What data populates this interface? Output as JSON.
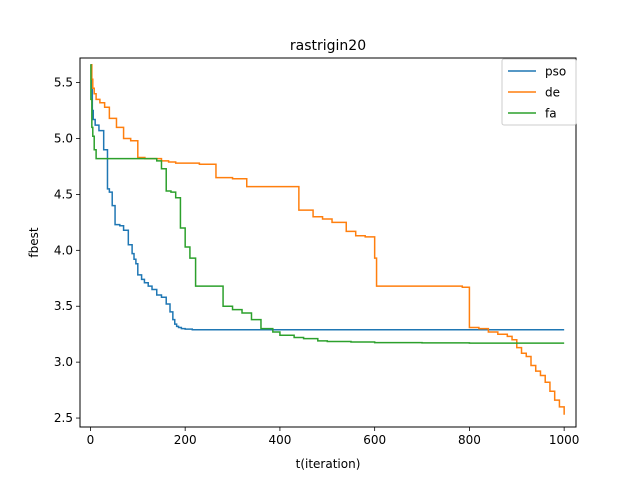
{
  "chart_data": {
    "type": "line",
    "title": "rastrigin20",
    "xlabel": "t(iteration)",
    "ylabel": "fbest",
    "xlim": [
      -22,
      1025
    ],
    "ylim": [
      2.42,
      5.72
    ],
    "xticks": [
      0,
      200,
      400,
      600,
      800,
      1000
    ],
    "xtick_labels": [
      "0",
      "200",
      "400",
      "600",
      "800",
      "1000"
    ],
    "yticks": [
      2.5,
      3.0,
      3.5,
      4.0,
      4.5,
      5.0,
      5.5
    ],
    "ytick_labels": [
      "2.5",
      "3.0",
      "3.5",
      "4.0",
      "4.5",
      "5.0",
      "5.5"
    ],
    "grid": false,
    "legend_position": "top-right",
    "series": [
      {
        "name": "pso",
        "color": "#1f77b4",
        "x": [
          0,
          2,
          4,
          6,
          10,
          18,
          28,
          36,
          40,
          46,
          52,
          62,
          70,
          80,
          88,
          92,
          96,
          100,
          108,
          114,
          122,
          130,
          140,
          150,
          160,
          168,
          174,
          178,
          182,
          186,
          192,
          200,
          215,
          240,
          300,
          400,
          600,
          800,
          1000
        ],
        "y": [
          5.66,
          5.45,
          5.25,
          5.17,
          5.12,
          5.07,
          4.9,
          4.55,
          4.52,
          4.4,
          4.23,
          4.22,
          4.18,
          4.05,
          3.97,
          3.92,
          3.88,
          3.78,
          3.74,
          3.71,
          3.68,
          3.65,
          3.6,
          3.58,
          3.52,
          3.45,
          3.38,
          3.34,
          3.32,
          3.31,
          3.3,
          3.295,
          3.29,
          3.29,
          3.29,
          3.29,
          3.29,
          3.29,
          3.29
        ]
      },
      {
        "name": "de",
        "color": "#ff7f0e",
        "x": [
          0,
          3,
          5,
          8,
          12,
          20,
          30,
          40,
          55,
          70,
          85,
          100,
          115,
          130,
          150,
          165,
          180,
          200,
          230,
          265,
          300,
          330,
          370,
          400,
          435,
          440,
          470,
          490,
          510,
          540,
          560,
          580,
          600,
          604,
          640,
          700,
          760,
          785,
          800,
          820,
          840,
          860,
          880,
          890,
          900,
          910,
          920,
          930,
          940,
          950,
          960,
          970,
          980,
          990,
          1000
        ],
        "y": [
          5.66,
          5.53,
          5.45,
          5.4,
          5.35,
          5.32,
          5.28,
          5.18,
          5.1,
          5.0,
          4.98,
          4.83,
          4.82,
          4.82,
          4.8,
          4.79,
          4.78,
          4.78,
          4.77,
          4.65,
          4.64,
          4.57,
          4.57,
          4.57,
          4.57,
          4.36,
          4.3,
          4.28,
          4.25,
          4.17,
          4.13,
          4.12,
          3.93,
          3.68,
          3.68,
          3.68,
          3.68,
          3.67,
          3.31,
          3.3,
          3.27,
          3.25,
          3.23,
          3.2,
          3.13,
          3.08,
          3.05,
          2.97,
          2.92,
          2.88,
          2.82,
          2.74,
          2.66,
          2.6,
          2.53
        ]
      },
      {
        "name": "fa",
        "color": "#2ca02c",
        "x": [
          0,
          1,
          3,
          5,
          8,
          12,
          30,
          60,
          90,
          120,
          140,
          150,
          160,
          170,
          180,
          190,
          200,
          210,
          222,
          250,
          280,
          300,
          320,
          340,
          360,
          385,
          400,
          430,
          450,
          480,
          500,
          550,
          600,
          700,
          800,
          900,
          1000
        ],
        "y": [
          5.66,
          5.35,
          5.1,
          5.02,
          4.9,
          4.82,
          4.82,
          4.82,
          4.82,
          4.82,
          4.8,
          4.73,
          4.53,
          4.52,
          4.47,
          4.2,
          4.03,
          3.93,
          3.68,
          3.68,
          3.5,
          3.47,
          3.44,
          3.38,
          3.3,
          3.27,
          3.24,
          3.22,
          3.21,
          3.19,
          3.185,
          3.18,
          3.175,
          3.172,
          3.17,
          3.17,
          3.17
        ]
      }
    ]
  }
}
